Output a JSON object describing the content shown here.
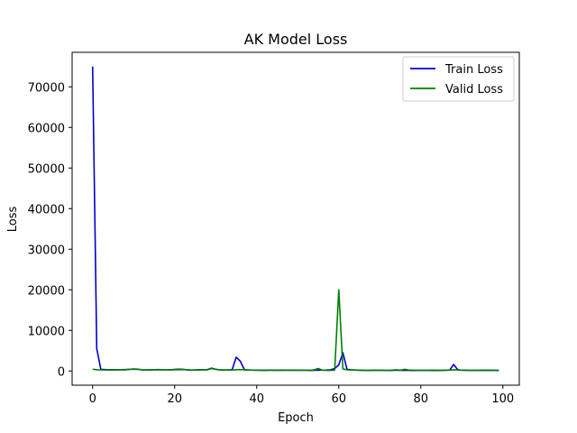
{
  "chart_data": {
    "type": "line",
    "title": "AK Model Loss",
    "xlabel": "Epoch",
    "ylabel": "Loss",
    "xlim": [
      -5,
      104
    ],
    "ylim": [
      -3500,
      78500
    ],
    "xticks": [
      0,
      20,
      40,
      60,
      80,
      100
    ],
    "yticks": [
      0,
      10000,
      20000,
      30000,
      40000,
      50000,
      60000,
      70000
    ],
    "grid": false,
    "legend_position": "top-right",
    "x": [
      0,
      1,
      2,
      3,
      4,
      5,
      6,
      7,
      8,
      9,
      10,
      11,
      12,
      13,
      14,
      15,
      16,
      17,
      18,
      19,
      20,
      21,
      22,
      23,
      24,
      25,
      26,
      27,
      28,
      29,
      30,
      31,
      32,
      33,
      34,
      35,
      36,
      37,
      38,
      39,
      40,
      41,
      42,
      43,
      44,
      45,
      46,
      47,
      48,
      49,
      50,
      51,
      52,
      53,
      54,
      55,
      56,
      57,
      58,
      59,
      60,
      61,
      62,
      63,
      64,
      65,
      66,
      67,
      68,
      69,
      70,
      71,
      72,
      73,
      74,
      75,
      76,
      77,
      78,
      79,
      80,
      81,
      82,
      83,
      84,
      85,
      86,
      87,
      88,
      89,
      90,
      91,
      92,
      93,
      94,
      95,
      96,
      97,
      98,
      99
    ],
    "series": [
      {
        "name": "Train Loss",
        "color": "#0000cc",
        "values": [
          75000,
          5500,
          400,
          350,
          300,
          320,
          300,
          310,
          350,
          400,
          450,
          400,
          300,
          280,
          300,
          320,
          350,
          300,
          280,
          300,
          320,
          350,
          380,
          300,
          250,
          280,
          300,
          320,
          350,
          700,
          400,
          300,
          250,
          280,
          300,
          3400,
          2400,
          300,
          250,
          220,
          200,
          180,
          190,
          200,
          210,
          180,
          200,
          220,
          190,
          200,
          210,
          220,
          180,
          160,
          170,
          200,
          220,
          240,
          300,
          600,
          1500,
          4500,
          400,
          300,
          250,
          200,
          150,
          160,
          170,
          180,
          190,
          150,
          120,
          160,
          200,
          180,
          160,
          140,
          120,
          150,
          160,
          170,
          140,
          120,
          130,
          140,
          180,
          200,
          1600,
          300,
          200,
          180,
          160,
          150,
          140,
          160,
          180,
          150,
          140,
          130
        ],
        "_unused": null
      },
      {
        "name": "Valid Loss",
        "color": "#008000",
        "values": [
          450,
          300,
          280,
          260,
          250,
          260,
          270,
          280,
          300,
          400,
          500,
          450,
          300,
          250,
          270,
          300,
          320,
          300,
          280,
          300,
          400,
          450,
          420,
          300,
          200,
          230,
          260,
          280,
          300,
          600,
          400,
          280,
          230,
          250,
          260,
          300,
          350,
          280,
          230,
          200,
          180,
          170,
          160,
          170,
          180,
          160,
          170,
          190,
          180,
          170,
          180,
          200,
          190,
          160,
          300,
          600,
          200,
          150,
          150,
          200,
          20000,
          500,
          300,
          250,
          200,
          180,
          160,
          150,
          160,
          170,
          180,
          160,
          150,
          200,
          300,
          200,
          400,
          250,
          200,
          180,
          170,
          160,
          180,
          200,
          190,
          180,
          200,
          220,
          300,
          250,
          200,
          180,
          170,
          160,
          180,
          200,
          220,
          200,
          190,
          180
        ]
      }
    ]
  }
}
